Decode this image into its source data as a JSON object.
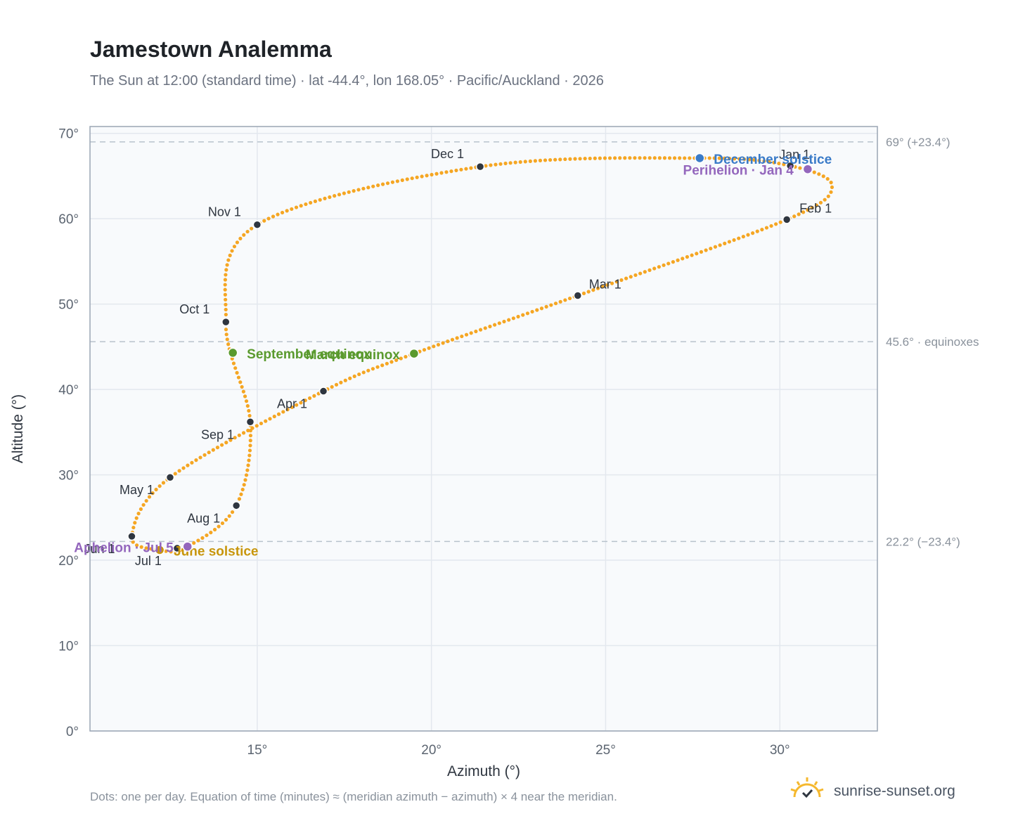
{
  "header": {
    "title": "Jamestown Analemma",
    "subtitle": "The Sun at 12:00 (standard time) · lat -44.4°, lon 168.05° · Pacific/Auckland · 2026"
  },
  "footer": {
    "note": "Dots: one per day. Equation of time (minutes) ≈ (meridian azimuth − azimuth) × 4 near the meridian.",
    "brand": "sunrise-sunset.org"
  },
  "colors": {
    "curve": "#f5a623",
    "month_marker": "#2f3640",
    "december_solstice": "#3a7bc8",
    "june_solstice": "#c8960c",
    "equinox": "#5a9a2e",
    "apsis": "#9467bd",
    "reference_line": "#b8c2cc",
    "plot_background": "#f8fafc"
  },
  "chart_data": {
    "type": "scatter",
    "title": "Jamestown Analemma",
    "xlabel": "Azimuth (°)",
    "ylabel": "Altitude (°)",
    "xlim": [
      10.2,
      32.8
    ],
    "ylim": [
      0,
      70.8
    ],
    "x_ticks": [
      15,
      20,
      25,
      30
    ],
    "x_tick_labels": [
      "15°",
      "20°",
      "25°",
      "30°"
    ],
    "y_ticks": [
      0,
      10,
      20,
      30,
      40,
      50,
      60,
      70
    ],
    "y_tick_labels": [
      "0°",
      "10°",
      "20°",
      "30°",
      "40°",
      "50°",
      "60°",
      "70°"
    ],
    "grid": true,
    "reference_lines": [
      {
        "y": 69.0,
        "label": "69° (+23.4°)"
      },
      {
        "y": 45.6,
        "label": "45.6° · equinoxes"
      },
      {
        "y": 22.2,
        "label": "22.2° (−23.4°)"
      }
    ],
    "path_anchors": [
      {
        "x": 30.3,
        "y": 66.2
      },
      {
        "x": 31.5,
        "y": 63.8
      },
      {
        "x": 30.2,
        "y": 59.9
      },
      {
        "x": 24.2,
        "y": 51.0
      },
      {
        "x": 19.5,
        "y": 44.2
      },
      {
        "x": 16.9,
        "y": 39.8
      },
      {
        "x": 12.5,
        "y": 29.7
      },
      {
        "x": 11.4,
        "y": 22.8
      },
      {
        "x": 12.2,
        "y": 21.2
      },
      {
        "x": 13.0,
        "y": 21.6
      },
      {
        "x": 14.4,
        "y": 26.4
      },
      {
        "x": 14.8,
        "y": 36.2
      },
      {
        "x": 14.1,
        "y": 47.9
      },
      {
        "x": 15.0,
        "y": 59.3
      },
      {
        "x": 21.4,
        "y": 66.1
      },
      {
        "x": 27.7,
        "y": 67.1
      },
      {
        "x": 30.3,
        "y": 66.2
      }
    ],
    "month_markers": [
      {
        "label": "Jan 1",
        "x": 30.3,
        "y": 66.2
      },
      {
        "label": "Feb 1",
        "x": 30.2,
        "y": 59.9
      },
      {
        "label": "Mar 1",
        "x": 24.2,
        "y": 51.0
      },
      {
        "label": "Apr 1",
        "x": 16.9,
        "y": 39.8
      },
      {
        "label": "May 1",
        "x": 12.5,
        "y": 29.7
      },
      {
        "label": "Jun 1",
        "x": 11.4,
        "y": 22.8
      },
      {
        "label": "Jul 1",
        "x": 12.7,
        "y": 21.4
      },
      {
        "label": "Aug 1",
        "x": 14.4,
        "y": 26.4
      },
      {
        "label": "Sep 1",
        "x": 14.8,
        "y": 36.2
      },
      {
        "label": "Oct 1",
        "x": 14.1,
        "y": 47.9
      },
      {
        "label": "Nov 1",
        "x": 15.0,
        "y": 59.3
      },
      {
        "label": "Dec 1",
        "x": 21.4,
        "y": 66.1
      }
    ],
    "events": [
      {
        "label": "December solstice",
        "x": 27.7,
        "y": 67.1,
        "color_key": "december_solstice"
      },
      {
        "label": "Perihelion · Jan 4",
        "x": 30.8,
        "y": 65.8,
        "color_key": "apsis"
      },
      {
        "label": "March equinox",
        "x": 19.5,
        "y": 44.2,
        "color_key": "equinox"
      },
      {
        "label": "September equinox",
        "x": 14.3,
        "y": 44.3,
        "color_key": "equinox"
      },
      {
        "label": "June solstice",
        "x": 12.2,
        "y": 21.2,
        "color_key": "june_solstice"
      },
      {
        "label": "Aphelion · Jul 5",
        "x": 13.0,
        "y": 21.6,
        "color_key": "apsis"
      }
    ]
  }
}
